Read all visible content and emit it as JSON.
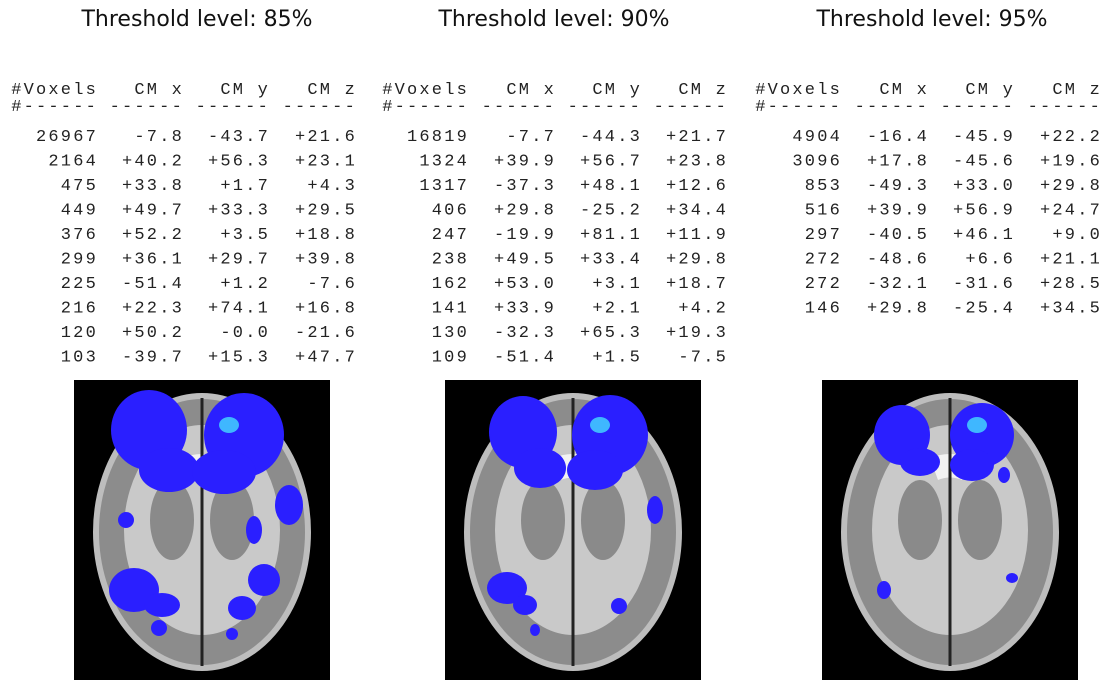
{
  "panels": [
    {
      "title": "Threshold level: 85%",
      "table": {
        "header": [
          "#Voxels",
          "CM x",
          "CM y",
          "CM z"
        ],
        "separator": [
          "#------",
          "------",
          "------",
          "------"
        ],
        "rows": [
          [
            "26967",
            "-7.8",
            "-43.7",
            "+21.6"
          ],
          [
            "2164",
            "+40.2",
            "+56.3",
            "+23.1"
          ],
          [
            "475",
            "+33.8",
            "+1.7",
            "+4.3"
          ],
          [
            "449",
            "+49.7",
            "+33.3",
            "+29.5"
          ],
          [
            "376",
            "+52.2",
            "+3.5",
            "+18.8"
          ],
          [
            "299",
            "+36.1",
            "+29.7",
            "+39.8"
          ],
          [
            "225",
            "-51.4",
            "+1.2",
            "-7.6"
          ],
          [
            "216",
            "+22.3",
            "+74.1",
            "+16.8"
          ],
          [
            "120",
            "+50.2",
            "-0.0",
            "-21.6"
          ],
          [
            "103",
            "-39.7",
            "+15.3",
            "+47.7"
          ]
        ]
      }
    },
    {
      "title": "Threshold level: 90%",
      "table": {
        "header": [
          "#Voxels",
          "CM x",
          "CM y",
          "CM z"
        ],
        "separator": [
          "#------",
          "------",
          "------",
          "------"
        ],
        "rows": [
          [
            "16819",
            "-7.7",
            "-44.3",
            "+21.7"
          ],
          [
            "1324",
            "+39.9",
            "+56.7",
            "+23.8"
          ],
          [
            "1317",
            "-37.3",
            "+48.1",
            "+12.6"
          ],
          [
            "406",
            "+29.8",
            "-25.2",
            "+34.4"
          ],
          [
            "247",
            "-19.9",
            "+81.1",
            "+11.9"
          ],
          [
            "238",
            "+49.5",
            "+33.4",
            "+29.8"
          ],
          [
            "162",
            "+53.0",
            "+3.1",
            "+18.7"
          ],
          [
            "141",
            "+33.9",
            "+2.1",
            "+4.2"
          ],
          [
            "130",
            "-32.3",
            "+65.3",
            "+19.3"
          ],
          [
            "109",
            "-51.4",
            "+1.5",
            "-7.5"
          ]
        ]
      }
    },
    {
      "title": "Threshold level: 95%",
      "table": {
        "header": [
          "#Voxels",
          "CM x",
          "CM y",
          "CM z"
        ],
        "separator": [
          "#------",
          "------",
          "------",
          "------"
        ],
        "rows": [
          [
            "4904",
            "-16.4",
            "-45.9",
            "+22.2"
          ],
          [
            "3096",
            "+17.8",
            "-45.6",
            "+19.6"
          ],
          [
            "853",
            "-49.3",
            "+33.0",
            "+29.8"
          ],
          [
            "516",
            "+39.9",
            "+56.9",
            "+24.7"
          ],
          [
            "297",
            "-40.5",
            "+46.1",
            "+9.0"
          ],
          [
            "272",
            "-48.6",
            "+6.6",
            "+21.1"
          ],
          [
            "272",
            "-32.1",
            "-31.6",
            "+28.5"
          ],
          [
            "146",
            "+29.8",
            "-25.4",
            "+34.5"
          ]
        ]
      }
    }
  ]
}
